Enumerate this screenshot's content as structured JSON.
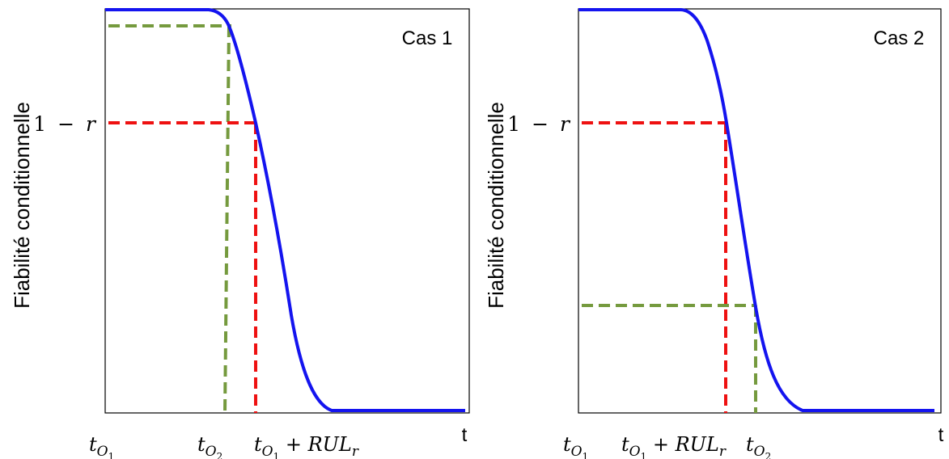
{
  "chart_data": [
    {
      "type": "line",
      "case_label": "Cas 1",
      "ylabel": "Fiabilité conditionnelle",
      "xlabel": "t",
      "reliability_level_label": {
        "lhs": "1",
        "op": "−",
        "rhs": "r"
      },
      "x_markers": [
        {
          "base": "t",
          "sub1": "O",
          "sub2": "1",
          "suffix": ""
        },
        {
          "base": "t",
          "sub1": "O",
          "sub2": "2",
          "suffix": ""
        },
        {
          "base": "t",
          "sub1": "O",
          "sub2": "1",
          "suffix": " + RUL",
          "suffix_sub": "r"
        }
      ],
      "colors": {
        "curve": "#1414ef",
        "rul_guide": "#ee1111",
        "second_guide": "#759a3e"
      }
    },
    {
      "type": "line",
      "case_label": "Cas 2",
      "ylabel": "Fiabilité conditionnelle",
      "xlabel": "t",
      "reliability_level_label": {
        "lhs": "1",
        "op": "−",
        "rhs": "r"
      },
      "x_markers": [
        {
          "base": "t",
          "sub1": "O",
          "sub2": "1",
          "suffix": ""
        },
        {
          "base": "t",
          "sub1": "O",
          "sub2": "1",
          "suffix": " + RUL",
          "suffix_sub": "r"
        },
        {
          "base": "t",
          "sub1": "O",
          "sub2": "2",
          "suffix": ""
        }
      ],
      "colors": {
        "curve": "#1414ef",
        "rul_guide": "#ee1111",
        "second_guide": "#759a3e"
      }
    }
  ]
}
